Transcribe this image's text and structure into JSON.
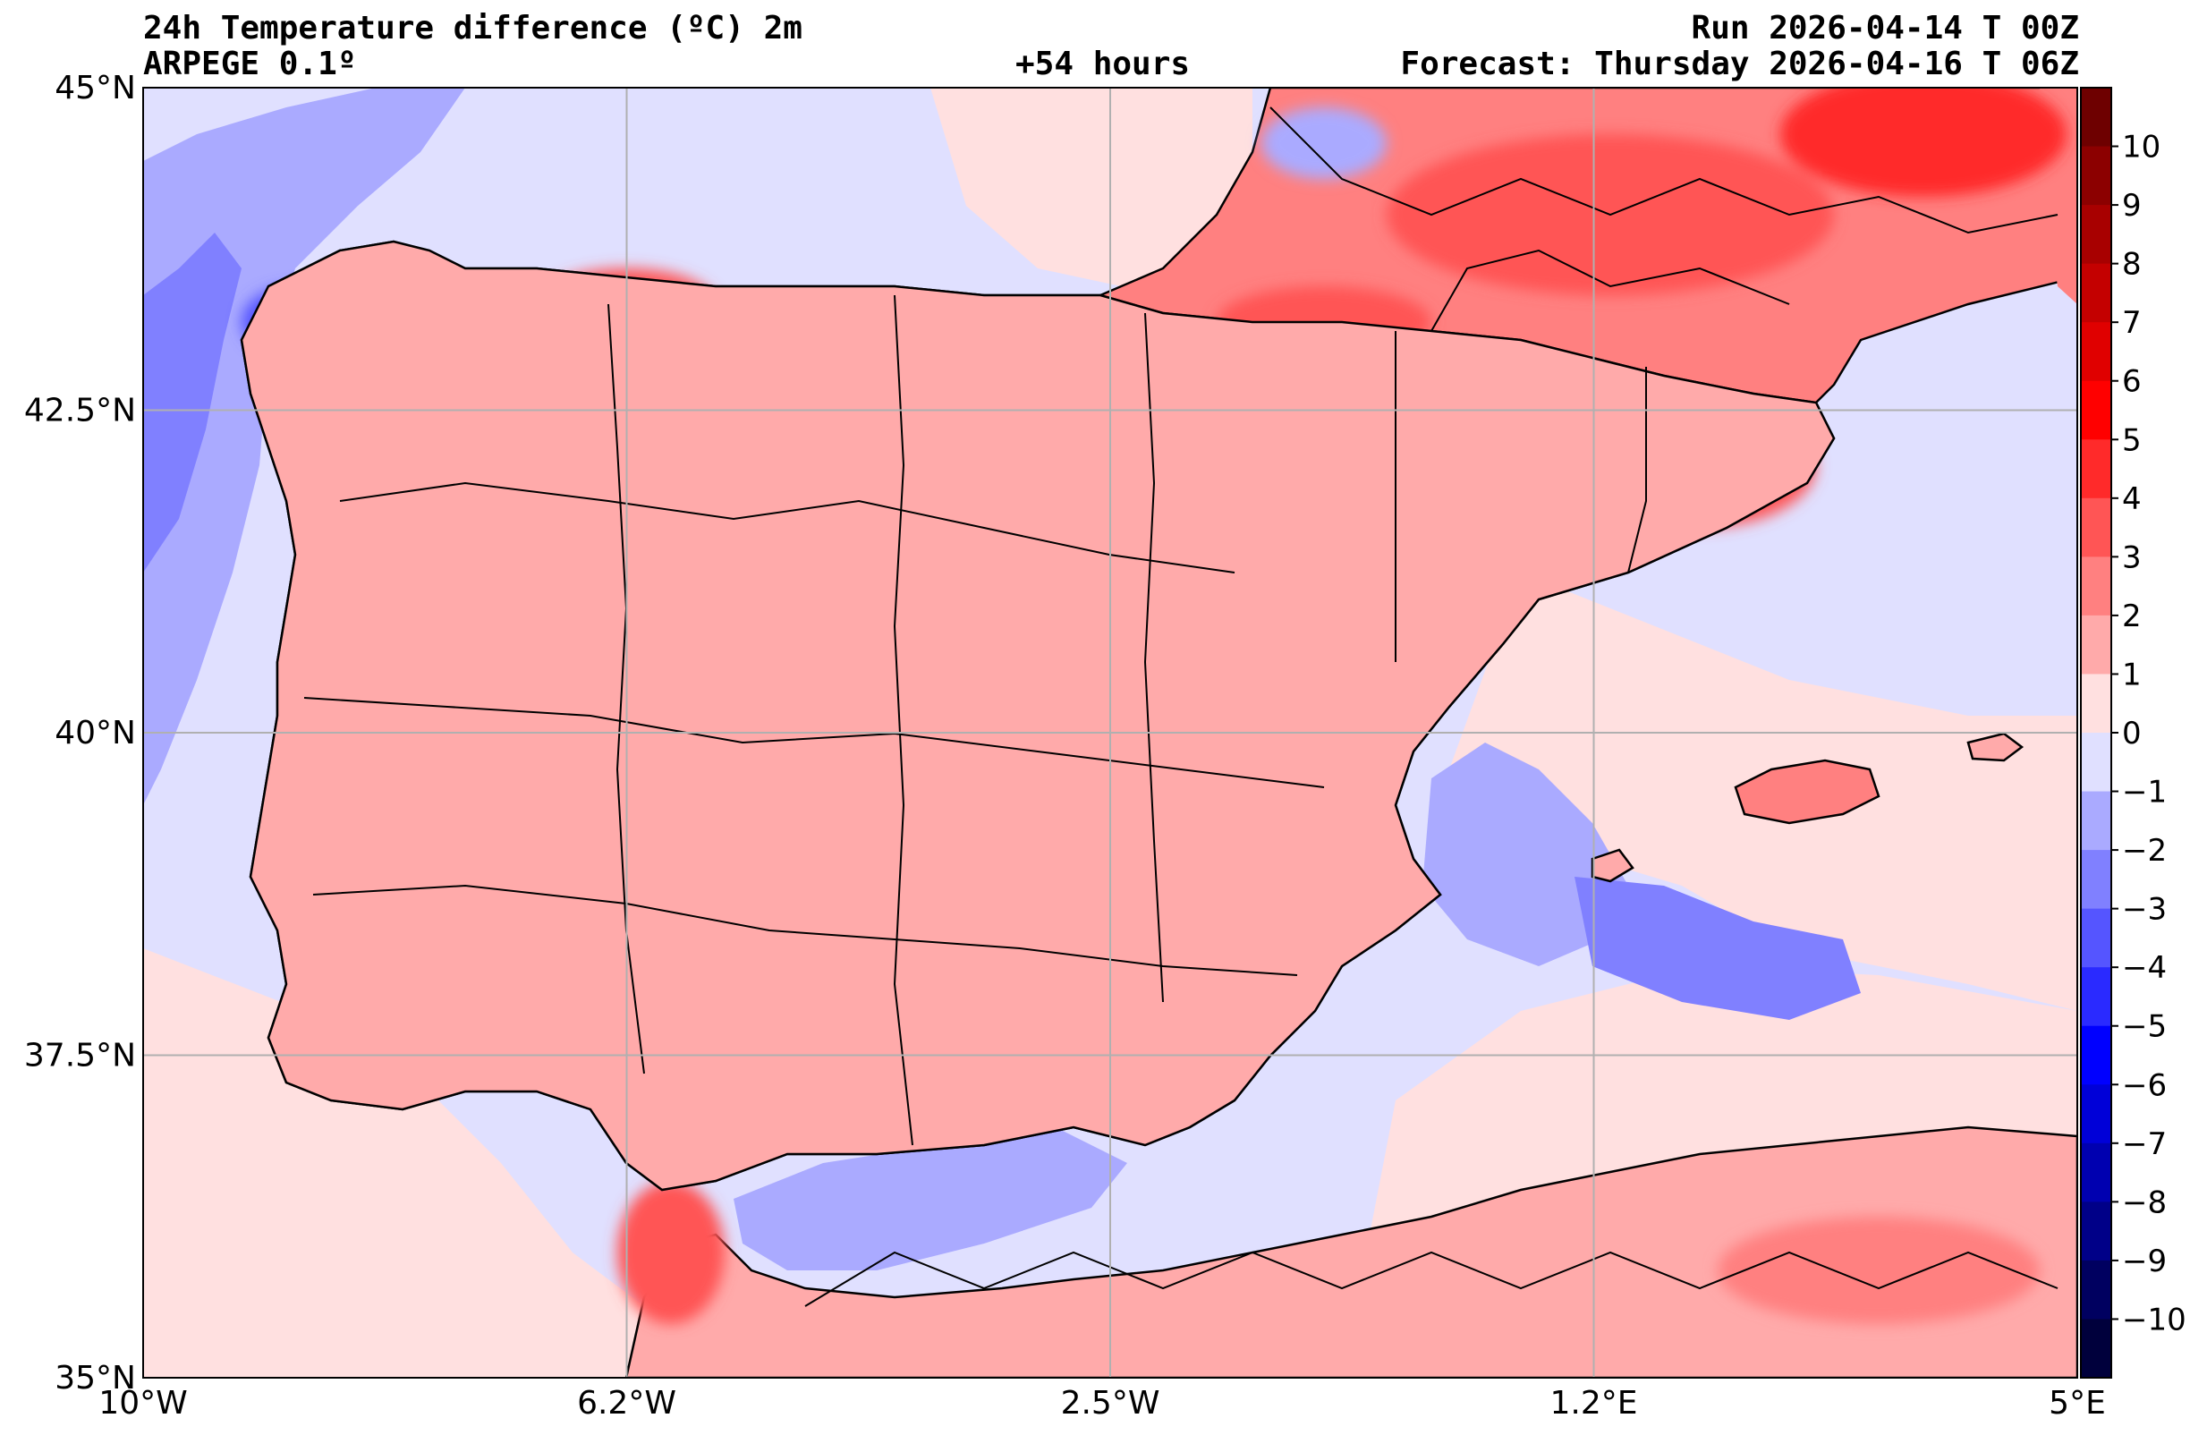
{
  "header": {
    "title": "24h Temperature difference (ºC) 2m",
    "model": "ARPEGE 0.1º",
    "lead_time": "+54 hours",
    "run": "Run 2026-04-14 T 00Z",
    "forecast": "Forecast: Thursday 2026-04-16 T 06Z"
  },
  "axes": {
    "lat_labels": [
      "45°N",
      "42.5°N",
      "40°N",
      "37.5°N",
      "35°N"
    ],
    "lon_labels": [
      "10°W",
      "6.2°W",
      "2.5°W",
      "1.2°E",
      "5°E"
    ],
    "lat_values": [
      45,
      42.5,
      40,
      37.5,
      35
    ],
    "lon_values": [
      -10,
      -6.25,
      -2.5,
      1.25,
      5
    ],
    "lat_range": [
      35,
      45
    ],
    "lon_range": [
      -10,
      5
    ],
    "grid": true
  },
  "colorbar": {
    "tick_labels": [
      "10",
      "9",
      "8",
      "7",
      "6",
      "5",
      "4",
      "3",
      "2",
      "1",
      "0",
      "−1",
      "−2",
      "−3",
      "−4",
      "−5",
      "−6",
      "−7",
      "−8",
      "−9",
      "−10"
    ],
    "tick_values": [
      10,
      9,
      8,
      7,
      6,
      5,
      4,
      3,
      2,
      1,
      0,
      -1,
      -2,
      -3,
      -4,
      -5,
      -6,
      -7,
      -8,
      -9,
      -10
    ],
    "range": [
      -11,
      11
    ],
    "colors_top_to_bottom": [
      "#6e0000",
      "#8c0000",
      "#a80000",
      "#c40000",
      "#e00000",
      "#ff0000",
      "#ff2a2a",
      "#ff5555",
      "#ff8080",
      "#ffaaaa",
      "#ffe0e0",
      "#e0e0ff",
      "#aaaaff",
      "#8080ff",
      "#5555ff",
      "#2a2aff",
      "#0000ff",
      "#0000d8",
      "#0000b0",
      "#000088",
      "#000060",
      "#00003c"
    ]
  },
  "colors": {
    "sea_cool": "#e0e0ff",
    "land_warm": "#ff8080",
    "coast": "#000000",
    "grid": "#b0b0b0"
  }
}
